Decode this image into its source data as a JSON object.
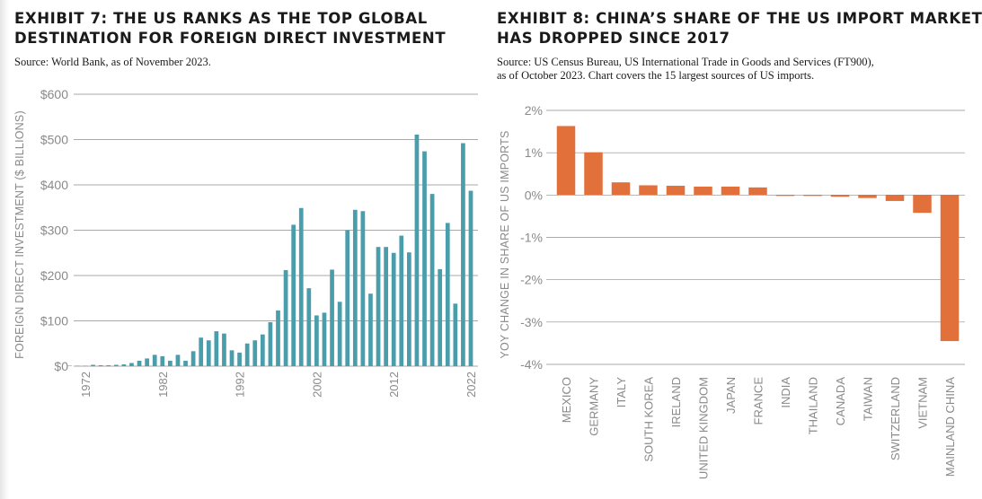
{
  "left": {
    "title_lines": [
      "EXHIBIT 7: THE US RANKS AS THE TOP GLOBAL",
      "DESTINATION FOR FOREIGN DIRECT INVESTMENT"
    ],
    "source": "Source: World Bank, as of November 2023."
  },
  "right": {
    "title_lines": [
      "EXHIBIT 8: CHINA’S SHARE OF THE US IMPORT MARKET",
      "HAS DROPPED SINCE 2017"
    ],
    "source_lines": [
      "Source: US Census Bureau, US International Trade in Goods and Services (FT900),",
      "as of October 2023. Chart covers the 15 largest sources of US imports."
    ]
  },
  "colors": {
    "teal": "#4a9dab",
    "orange": "#e2703a",
    "grid": "#8c8c8c",
    "tick_text": "#8a8a8a"
  },
  "chart_data": [
    {
      "type": "bar",
      "title": "EXHIBIT 7: THE US RANKS AS THE TOP GLOBAL DESTINATION FOR FOREIGN DIRECT INVESTMENT",
      "ylabel": "FOREIGN DIRECT INVESTMENT ($ BILLIONS)",
      "xlabel": "",
      "ylim": [
        0,
        600
      ],
      "y_ticks": [
        "$0",
        "$100",
        "$200",
        "$300",
        "$400",
        "$500",
        "$600"
      ],
      "x_tick_labels": [
        "1972",
        "1982",
        "1992",
        "2002",
        "2012",
        "2022"
      ],
      "grid": true,
      "x": [
        1970,
        1971,
        1972,
        1973,
        1974,
        1975,
        1976,
        1977,
        1978,
        1979,
        1980,
        1981,
        1982,
        1983,
        1984,
        1985,
        1986,
        1987,
        1988,
        1989,
        1990,
        1991,
        1992,
        1993,
        1994,
        1995,
        1996,
        1997,
        1998,
        1999,
        2000,
        2001,
        2002,
        2003,
        2004,
        2005,
        2006,
        2007,
        2008,
        2009,
        2010,
        2011,
        2012,
        2013,
        2014,
        2015,
        2016,
        2017,
        2018,
        2019,
        2020,
        2021,
        2022
      ],
      "values": [
        1,
        1,
        1,
        3,
        2,
        2,
        3,
        4,
        7,
        12,
        17,
        25,
        22,
        12,
        25,
        12,
        33,
        63,
        57,
        77,
        72,
        35,
        30,
        50,
        57,
        70,
        97,
        123,
        212,
        312,
        349,
        172,
        112,
        118,
        213,
        142,
        300,
        345,
        342,
        160,
        263,
        263,
        250,
        288,
        251,
        511,
        474,
        380,
        214,
        316,
        138,
        492,
        387
      ]
    },
    {
      "type": "bar",
      "title": "EXHIBIT 8: CHINA’S SHARE OF THE US IMPORT MARKET HAS DROPPED SINCE 2017",
      "ylabel": "YOY CHANGE IN SHARE OF US IMPORTS",
      "xlabel": "",
      "ylim": [
        -4,
        2
      ],
      "y_ticks": [
        "2%",
        "1%",
        "0%",
        "-1%",
        "-2%",
        "-3%",
        "-4%"
      ],
      "grid": true,
      "categories": [
        "MEXICO",
        "GERMANY",
        "ITALY",
        "SOUTH KOREA",
        "IRELAND",
        "UNITED KINGDOM",
        "JAPAN",
        "FRANCE",
        "INDIA",
        "THAILAND",
        "CANADA",
        "TAIWAN",
        "SWITZERLAND",
        "VIETNAM",
        "MAINLAND CHINA"
      ],
      "values": [
        1.63,
        1.01,
        0.3,
        0.23,
        0.22,
        0.2,
        0.2,
        0.18,
        -0.02,
        -0.02,
        -0.04,
        -0.07,
        -0.14,
        -0.42,
        -3.45
      ],
      "unit": "%"
    }
  ]
}
